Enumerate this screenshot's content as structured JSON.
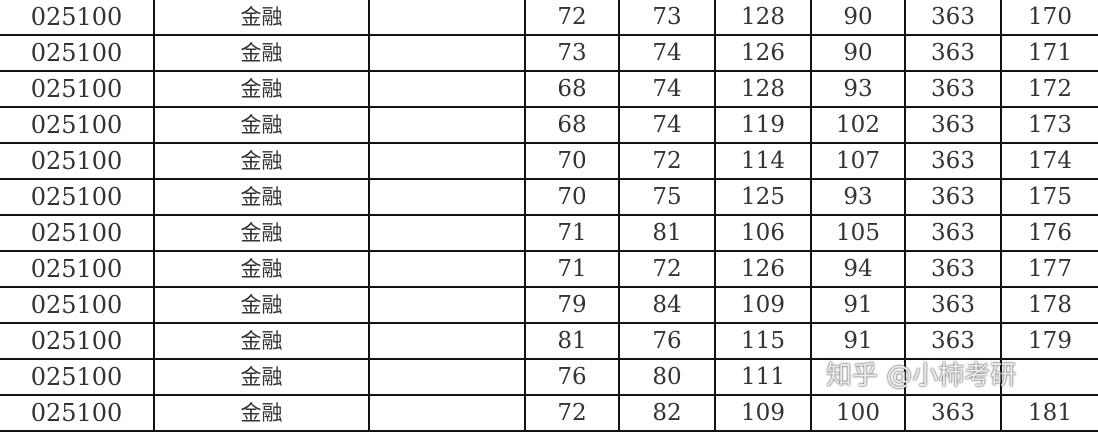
{
  "table": {
    "rows": [
      [
        "025100",
        "金融",
        "",
        "72",
        "73",
        "128",
        "90",
        "363",
        "170"
      ],
      [
        "025100",
        "金融",
        "",
        "73",
        "74",
        "126",
        "90",
        "363",
        "171"
      ],
      [
        "025100",
        "金融",
        "",
        "68",
        "74",
        "128",
        "93",
        "363",
        "172"
      ],
      [
        "025100",
        "金融",
        "",
        "68",
        "74",
        "119",
        "102",
        "363",
        "173"
      ],
      [
        "025100",
        "金融",
        "",
        "70",
        "72",
        "114",
        "107",
        "363",
        "174"
      ],
      [
        "025100",
        "金融",
        "",
        "70",
        "75",
        "125",
        "93",
        "363",
        "175"
      ],
      [
        "025100",
        "金融",
        "",
        "71",
        "81",
        "106",
        "105",
        "363",
        "176"
      ],
      [
        "025100",
        "金融",
        "",
        "71",
        "72",
        "126",
        "94",
        "363",
        "177"
      ],
      [
        "025100",
        "金融",
        "",
        "79",
        "84",
        "109",
        "91",
        "363",
        "178"
      ],
      [
        "025100",
        "金融",
        "",
        "81",
        "76",
        "115",
        "91",
        "363",
        "179"
      ],
      [
        "025100",
        "金融",
        "",
        "76",
        "80",
        "111",
        "",
        "",
        ""
      ],
      [
        "025100",
        "金融",
        "",
        "72",
        "82",
        "109",
        "100",
        "363",
        "181"
      ]
    ]
  },
  "watermark": "知乎 @小柿考研"
}
